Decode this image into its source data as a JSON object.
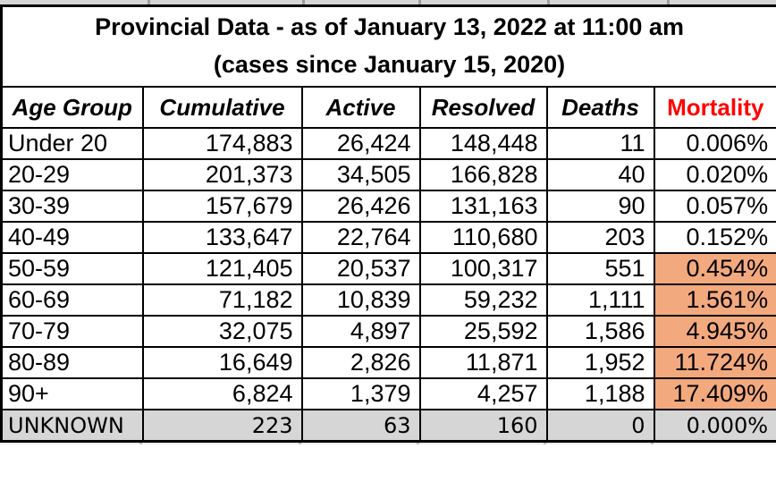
{
  "title": {
    "line1": "Provincial Data - as of January 13, 2022 at 11:00 am",
    "line2": "(cases since January 15, 2020)"
  },
  "colors": {
    "highlight_orange": "#f3a97e",
    "unknown_gray": "#d6d6d6",
    "mortality_red": "#ff0000",
    "border_black": "#000000",
    "text_black": "#000000",
    "background_white": "#ffffff"
  },
  "table": {
    "columns": [
      {
        "key": "age_group",
        "label": "Age Group"
      },
      {
        "key": "cumulative",
        "label": "Cumulative"
      },
      {
        "key": "active",
        "label": "Active"
      },
      {
        "key": "resolved",
        "label": "Resolved"
      },
      {
        "key": "deaths",
        "label": "Deaths"
      },
      {
        "key": "mortality",
        "label": "Mortality"
      }
    ],
    "rows": [
      {
        "age_group": "Under 20",
        "cumulative": "174,883",
        "active": "26,424",
        "resolved": "148,448",
        "deaths": "11",
        "mortality": "0.006%",
        "highlight": false,
        "row_style": "normal"
      },
      {
        "age_group": "20-29",
        "cumulative": "201,373",
        "active": "34,505",
        "resolved": "166,828",
        "deaths": "40",
        "mortality": "0.020%",
        "highlight": false,
        "row_style": "normal"
      },
      {
        "age_group": "30-39",
        "cumulative": "157,679",
        "active": "26,426",
        "resolved": "131,163",
        "deaths": "90",
        "mortality": "0.057%",
        "highlight": false,
        "row_style": "normal"
      },
      {
        "age_group": "40-49",
        "cumulative": "133,647",
        "active": "22,764",
        "resolved": "110,680",
        "deaths": "203",
        "mortality": "0.152%",
        "highlight": false,
        "row_style": "normal"
      },
      {
        "age_group": "50-59",
        "cumulative": "121,405",
        "active": "20,537",
        "resolved": "100,317",
        "deaths": "551",
        "mortality": "0.454%",
        "highlight": true,
        "row_style": "normal"
      },
      {
        "age_group": "60-69",
        "cumulative": "71,182",
        "active": "10,839",
        "resolved": "59,232",
        "deaths": "1,111",
        "mortality": "1.561%",
        "highlight": true,
        "row_style": "normal"
      },
      {
        "age_group": "70-79",
        "cumulative": "32,075",
        "active": "4,897",
        "resolved": "25,592",
        "deaths": "1,586",
        "mortality": "4.945%",
        "highlight": true,
        "row_style": "normal"
      },
      {
        "age_group": "80-89",
        "cumulative": "16,649",
        "active": "2,826",
        "resolved": "11,871",
        "deaths": "1,952",
        "mortality": "11.724%",
        "highlight": true,
        "row_style": "normal"
      },
      {
        "age_group": "90+",
        "cumulative": "6,824",
        "active": "1,379",
        "resolved": "4,257",
        "deaths": "1,188",
        "mortality": "17.409%",
        "highlight": true,
        "row_style": "normal"
      },
      {
        "age_group": "UNKNOWN",
        "cumulative": "223",
        "active": "63",
        "resolved": "160",
        "deaths": "0",
        "mortality": "0.000%",
        "highlight": false,
        "row_style": "gray"
      }
    ]
  },
  "chart_data": {
    "type": "table",
    "title": "Provincial Data - as of January 13, 2022 at 11:00 am",
    "subtitle": "(cases since January 15, 2020)",
    "columns": [
      "Age Group",
      "Cumulative",
      "Active",
      "Resolved",
      "Deaths",
      "Mortality"
    ],
    "rows": [
      [
        "Under 20",
        174883,
        26424,
        148448,
        11,
        "0.006%"
      ],
      [
        "20-29",
        201373,
        34505,
        166828,
        40,
        "0.020%"
      ],
      [
        "30-39",
        157679,
        26426,
        131163,
        90,
        "0.057%"
      ],
      [
        "40-49",
        133647,
        22764,
        110680,
        203,
        "0.152%"
      ],
      [
        "50-59",
        121405,
        20537,
        100317,
        551,
        "0.454%"
      ],
      [
        "60-69",
        71182,
        10839,
        59232,
        1111,
        "1.561%"
      ],
      [
        "70-79",
        32075,
        4897,
        25592,
        1586,
        "4.945%"
      ],
      [
        "80-89",
        16649,
        2826,
        11871,
        1952,
        "11.724%"
      ],
      [
        "90+",
        6824,
        1379,
        4257,
        1188,
        "17.409%"
      ],
      [
        "UNKNOWN",
        223,
        63,
        160,
        0,
        "0.000%"
      ]
    ],
    "notes": "Mortality cells for rows 50-59 through 90+ highlighted orange; UNKNOWN row shaded gray"
  }
}
